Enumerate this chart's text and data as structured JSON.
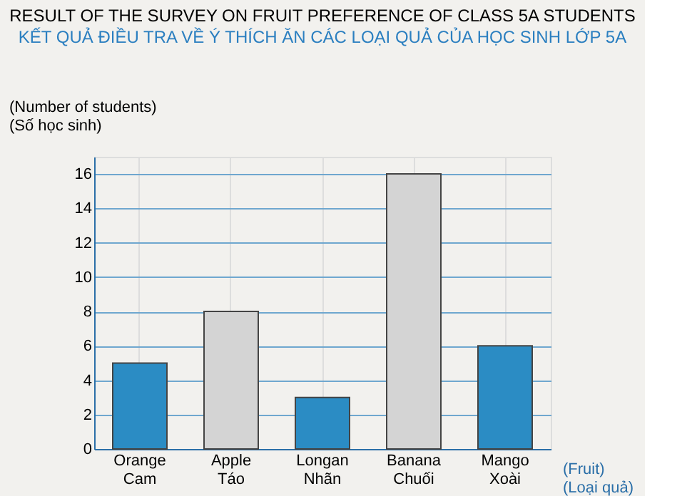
{
  "chart_data": {
    "type": "bar",
    "title": "RESULT OF THE SURVEY ON FRUIT PREFERENCE OF CLASS 5A STUDENTS",
    "subtitle": "KẾT QUẢ ĐIỀU TRA VỀ Ý THÍCH ĂN CÁC LOẠI QUẢ CỦA HỌC SINH LỚP 5A",
    "ylabel": "(Number of students)\n(Số học sinh)",
    "xlabel": "(Fruit)\n(Loại quả)",
    "categories": [
      "Orange\nCam",
      "Apple\nTáo",
      "Longan\nNhãn",
      "Banana\nChuối",
      "Mango\nXoài"
    ],
    "values": [
      5,
      8,
      3,
      16,
      6
    ],
    "colors": [
      "#2b8cc4",
      "#d4d4d4",
      "#2b8cc4",
      "#d4d4d4",
      "#2b8cc4"
    ],
    "ylim": [
      0,
      17
    ],
    "yticks": [
      0,
      2,
      4,
      6,
      8,
      10,
      12,
      14,
      16
    ],
    "grid": true
  }
}
